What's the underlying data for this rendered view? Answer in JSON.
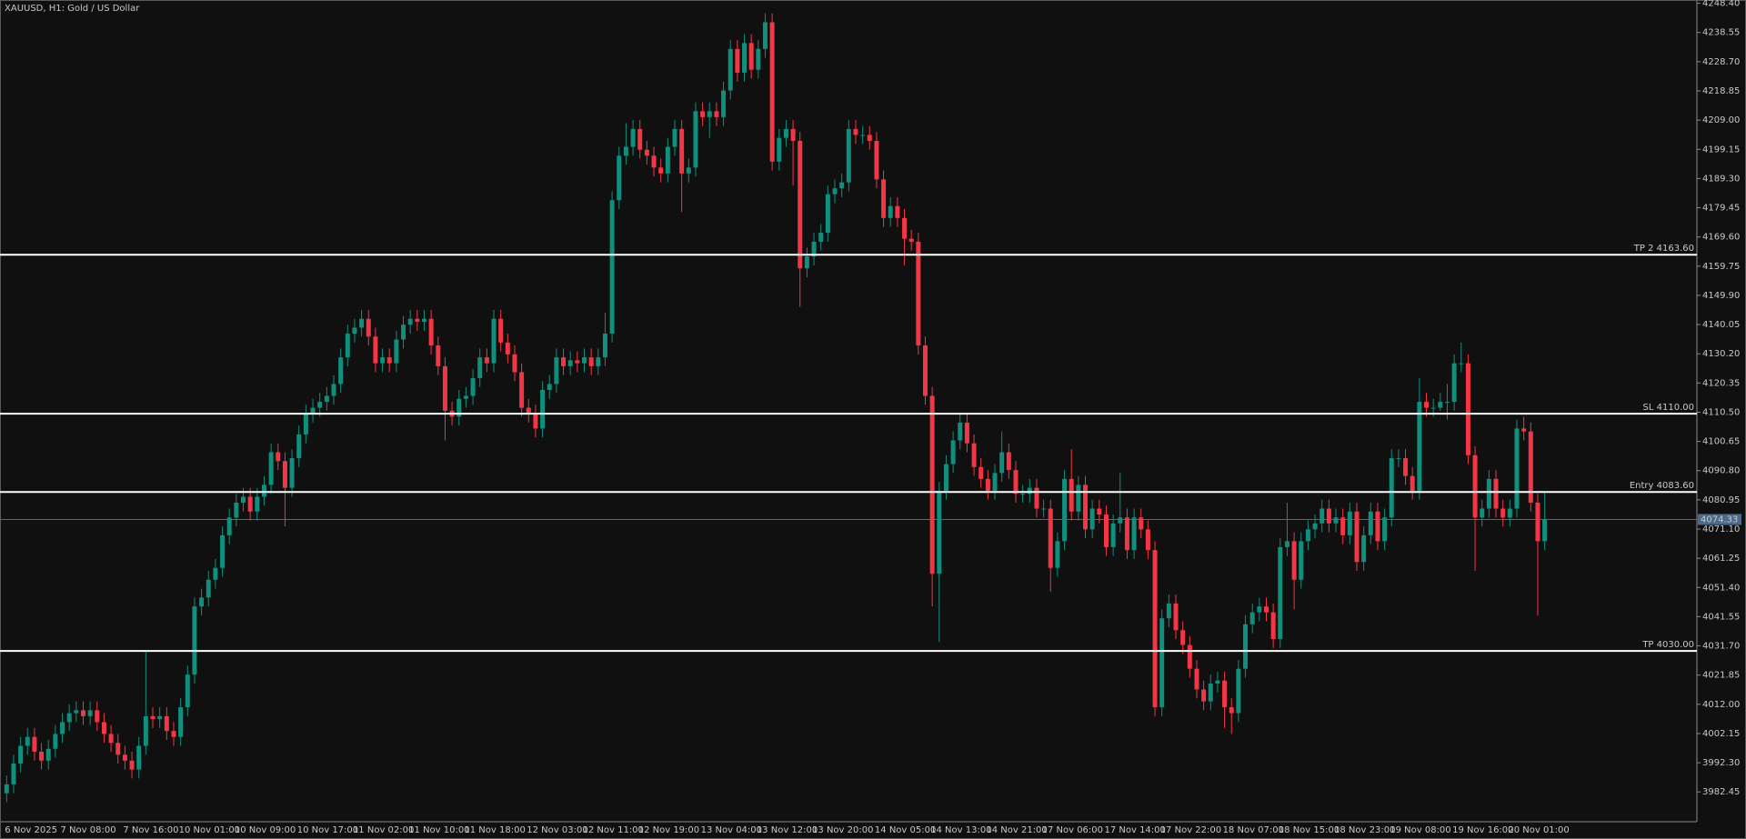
{
  "chart_data": {
    "type": "candlestick",
    "title": "XAUUSD, H1:  Gold / US Dollar",
    "categories": [
      "6 Nov 2025",
      null,
      null,
      null,
      null,
      null,
      null,
      null,
      "7 Nov 08:00",
      null,
      null,
      null,
      null,
      null,
      null,
      null,
      null,
      "7 Nov 16:00",
      null,
      null,
      null,
      null,
      null,
      null,
      null,
      "10 Nov 01:00",
      null,
      null,
      null,
      null,
      null,
      null,
      null,
      "10 Nov 09:00",
      null,
      null,
      null,
      null,
      null,
      null,
      null,
      null,
      "10 Nov 17:00",
      null,
      null,
      null,
      null,
      null,
      null,
      null,
      "11 Nov 02:00",
      null,
      null,
      null,
      null,
      null,
      null,
      null,
      "11 Nov 10:00",
      null,
      null,
      null,
      null,
      null,
      null,
      null,
      "11 Nov 18:00",
      null,
      null,
      null,
      null,
      null,
      null,
      null,
      null,
      "12 Nov 03:00",
      null,
      null,
      null,
      null,
      null,
      null,
      null,
      "12 Nov 11:00",
      null,
      null,
      null,
      null,
      null,
      null,
      null,
      "12 Nov 19:00",
      null,
      null,
      null,
      null,
      null,
      null,
      null,
      null,
      "13 Nov 04:00",
      null,
      null,
      null,
      null,
      null,
      null,
      null,
      "13 Nov 12:00",
      null,
      null,
      null,
      null,
      null,
      null,
      null,
      "13 Nov 20:00",
      null,
      null,
      null,
      null,
      null,
      null,
      null,
      null,
      "14 Nov 05:00",
      null,
      null,
      null,
      null,
      null,
      null,
      null,
      "14 Nov 13:00",
      null,
      null,
      null,
      null,
      null,
      null,
      null,
      "14 Nov 21:00",
      null,
      null,
      null,
      null,
      null,
      null,
      null,
      "17 Nov 06:00",
      null,
      null,
      null,
      null,
      null,
      null,
      null,
      null,
      "17 Nov 14:00",
      null,
      null,
      null,
      null,
      null,
      null,
      null,
      "17 Nov 22:00",
      null,
      null,
      null,
      null,
      null,
      null,
      null,
      null,
      "18 Nov 07:00",
      null,
      null,
      null,
      null,
      null,
      null,
      null,
      "18 Nov 15:00",
      null,
      null,
      null,
      null,
      null,
      null,
      null,
      "18 Nov 23:00",
      null,
      null,
      null,
      null,
      null,
      null,
      null,
      "19 Nov 08:00",
      null,
      null,
      null,
      null,
      null,
      null,
      null,
      null,
      "19 Nov 16:00",
      null,
      null,
      null,
      null,
      null,
      null,
      null,
      "20 Nov 01:00",
      null,
      null,
      null,
      null,
      null
    ],
    "open": [
      3982,
      3985,
      3992,
      3998,
      4001,
      3996,
      3993,
      3997,
      4002,
      4006,
      4009,
      4010,
      4008,
      4010,
      4006,
      4002,
      3999,
      3995,
      3993,
      3990,
      3998,
      4008,
      4007,
      4008,
      4003,
      4001,
      4011,
      4022,
      4045,
      4048,
      4054,
      4058,
      4069,
      4075,
      4080,
      4082,
      4077,
      4082,
      4086,
      4097,
      4094,
      4085,
      4095,
      4103,
      4110,
      4112,
      4114,
      4116,
      4120,
      4129,
      4137,
      4139,
      4142,
      4136,
      4127,
      4129,
      4127,
      4135,
      4140,
      4142,
      4141,
      4142,
      4133,
      4126,
      4111,
      4109,
      4115,
      4116,
      4122,
      4129,
      4127,
      4142,
      4134,
      4130,
      4124,
      4112,
      4110,
      4105,
      4118,
      4120,
      4129,
      4126,
      4128,
      4127,
      4129,
      4126,
      4129,
      4137,
      4182,
      4197,
      4200,
      4206,
      4199,
      4197,
      4193,
      4191,
      4200,
      4206,
      4191,
      4193,
      4212,
      4210,
      4212,
      4210,
      4219,
      4233,
      4225,
      4235,
      4226,
      4233,
      4242,
      4195,
      4203,
      4206,
      4202,
      4159,
      4163,
      4168,
      4171,
      4184,
      4186,
      4188,
      4206,
      4204,
      4204,
      4202,
      4189,
      4176,
      4180,
      4176,
      4169,
      4168,
      4133,
      4116,
      4056,
      4084,
      4093,
      4101,
      4107,
      4100,
      4092,
      4088,
      4084,
      4090,
      4097,
      4091,
      4083,
      4083,
      4085,
      4078,
      4078,
      4058,
      4067,
      4088,
      4077,
      4086,
      4071,
      4078,
      4076,
      4065,
      4073,
      4075,
      4064,
      4075,
      4071,
      4064,
      4011,
      4041,
      4046,
      4037,
      4032,
      4024,
      4017,
      4013,
      4019,
      4020,
      4011,
      4009,
      4024,
      4039,
      4043,
      4045,
      4043,
      4034,
      4065,
      4067,
      4054,
      4067,
      4071,
      4073,
      4078,
      4073,
      4075,
      4069,
      4077,
      4060,
      4069,
      4077,
      4067,
      4075,
      4095,
      4095,
      4089,
      4084,
      4114,
      4112,
      4112,
      4114,
      4114,
      4127,
      4127,
      4096,
      4075,
      4078,
      4088,
      4078,
      4075,
      4078,
      4105,
      4104,
      4080,
      4067
    ],
    "high": [
      3988,
      3995,
      4001,
      4004,
      4004,
      3999,
      4000,
      4005,
      4009,
      4012,
      4013,
      4013,
      4013,
      4013,
      4009,
      4005,
      4002,
      3998,
      3996,
      4001,
      4030,
      4011,
      4011,
      4011,
      4006,
      4014,
      4025,
      4048,
      4051,
      4057,
      4061,
      4072,
      4078,
      4083,
      4085,
      4085,
      4085,
      4089,
      4100,
      4100,
      4097,
      4098,
      4106,
      4113,
      4115,
      4117,
      4119,
      4123,
      4132,
      4140,
      4142,
      4145,
      4145,
      4139,
      4132,
      4132,
      4138,
      4143,
      4145,
      4145,
      4145,
      4145,
      4136,
      4129,
      4114,
      4118,
      4119,
      4125,
      4132,
      4132,
      4145,
      4145,
      4137,
      4133,
      4127,
      4115,
      4113,
      4121,
      4123,
      4132,
      4132,
      4131,
      4131,
      4132,
      4132,
      4132,
      4144,
      4185,
      4200,
      4208,
      4209,
      4209,
      4202,
      4200,
      4196,
      4203,
      4209,
      4209,
      4196,
      4215,
      4215,
      4215,
      4215,
      4222,
      4236,
      4236,
      4238,
      4238,
      4236,
      4245,
      4245,
      4206,
      4209,
      4209,
      4205,
      4166,
      4171,
      4174,
      4187,
      4189,
      4191,
      4209,
      4209,
      4207,
      4207,
      4205,
      4192,
      4183,
      4183,
      4179,
      4172,
      4171,
      4136,
      4119,
      4087,
      4096,
      4104,
      4110,
      4110,
      4103,
      4095,
      4091,
      4093,
      4104,
      4100,
      4094,
      4086,
      4088,
      4088,
      4081,
      4081,
      4070,
      4091,
      4098,
      4089,
      4089,
      4081,
      4081,
      4079,
      4076,
      4090,
      4078,
      4078,
      4078,
      4074,
      4067,
      4044,
      4049,
      4049,
      4040,
      4035,
      4027,
      4020,
      4022,
      4023,
      4023,
      4014,
      4027,
      4042,
      4046,
      4048,
      4048,
      4046,
      4068,
      4080,
      4070,
      4070,
      4074,
      4076,
      4081,
      4081,
      4078,
      4078,
      4080,
      4080,
      4072,
      4080,
      4080,
      4078,
      4098,
      4098,
      4098,
      4092,
      4122,
      4117,
      4115,
      4117,
      4120,
      4130,
      4134,
      4130,
      4099,
      4081,
      4091,
      4091,
      4081,
      4081,
      4108,
      4109,
      4107,
      4083,
      4084
    ],
    "low": [
      3979,
      3982,
      3989,
      3995,
      3993,
      3990,
      3990,
      3994,
      3999,
      4003,
      4006,
      4005,
      4005,
      4003,
      3999,
      3996,
      3992,
      3990,
      3987,
      3987,
      3995,
      4004,
      4004,
      4000,
      3998,
      3998,
      4008,
      4019,
      4042,
      4045,
      4051,
      4055,
      4066,
      4072,
      4077,
      4074,
      4074,
      4079,
      4083,
      4091,
      4072,
      4082,
      4092,
      4100,
      4107,
      4109,
      4111,
      4113,
      4117,
      4126,
      4134,
      4136,
      4133,
      4124,
      4124,
      4124,
      4124,
      4132,
      4137,
      4138,
      4138,
      4130,
      4123,
      4101,
      4106,
      4106,
      4112,
      4113,
      4119,
      4124,
      4124,
      4131,
      4127,
      4121,
      4109,
      4107,
      4102,
      4102,
      4115,
      4117,
      4123,
      4123,
      4124,
      4124,
      4123,
      4123,
      4126,
      4134,
      4179,
      4194,
      4197,
      4196,
      4194,
      4190,
      4188,
      4188,
      4197,
      4178,
      4188,
      4190,
      4207,
      4203,
      4207,
      4207,
      4216,
      4222,
      4222,
      4223,
      4223,
      4230,
      4192,
      4192,
      4200,
      4187,
      4146,
      4156,
      4160,
      4165,
      4168,
      4181,
      4183,
      4185,
      4201,
      4201,
      4199,
      4186,
      4173,
      4173,
      4173,
      4160,
      4165,
      4130,
      4113,
      4045,
      4033,
      4081,
      4090,
      4098,
      4097,
      4089,
      4085,
      4081,
      4081,
      4087,
      4088,
      4080,
      4080,
      4080,
      4075,
      4075,
      4050,
      4055,
      4064,
      4074,
      4074,
      4068,
      4068,
      4073,
      4062,
      4062,
      4070,
      4061,
      4061,
      4068,
      4061,
      4008,
      4008,
      4038,
      4034,
      4029,
      4021,
      4014,
      4010,
      4010,
      4016,
      4004,
      4002,
      4006,
      4021,
      4036,
      4040,
      4040,
      4031,
      4031,
      4062,
      4044,
      4051,
      4064,
      4068,
      4070,
      4070,
      4070,
      4066,
      4066,
      4057,
      4057,
      4066,
      4064,
      4064,
      4072,
      4092,
      4086,
      4081,
      4081,
      4109,
      4109,
      4111,
      4108,
      4111,
      4124,
      4093,
      4057,
      4072,
      4075,
      4075,
      4072,
      4072,
      4075,
      4101,
      4077,
      4042,
      4064
    ],
    "close": [
      3985,
      3992,
      3998,
      4001,
      3996,
      3993,
      3997,
      4002,
      4006,
      4009,
      4010,
      4008,
      4010,
      4006,
      4002,
      3999,
      3995,
      3993,
      3990,
      3998,
      4008,
      4007,
      4008,
      4003,
      4001,
      4011,
      4022,
      4045,
      4048,
      4054,
      4058,
      4069,
      4075,
      4080,
      4082,
      4077,
      4082,
      4086,
      4097,
      4094,
      4085,
      4095,
      4103,
      4110,
      4112,
      4114,
      4116,
      4120,
      4129,
      4137,
      4139,
      4142,
      4136,
      4127,
      4129,
      4127,
      4135,
      4140,
      4142,
      4141,
      4142,
      4133,
      4126,
      4111,
      4109,
      4115,
      4116,
      4122,
      4129,
      4127,
      4142,
      4134,
      4130,
      4124,
      4112,
      4110,
      4105,
      4118,
      4120,
      4129,
      4126,
      4128,
      4127,
      4129,
      4126,
      4129,
      4137,
      4182,
      4197,
      4200,
      4206,
      4199,
      4197,
      4193,
      4191,
      4200,
      4206,
      4191,
      4193,
      4212,
      4210,
      4212,
      4210,
      4219,
      4233,
      4225,
      4235,
      4226,
      4233,
      4242,
      4195,
      4203,
      4206,
      4202,
      4159,
      4163,
      4168,
      4171,
      4184,
      4186,
      4188,
      4206,
      4204,
      4204,
      4202,
      4189,
      4176,
      4180,
      4176,
      4169,
      4168,
      4133,
      4116,
      4056,
      4084,
      4093,
      4101,
      4107,
      4100,
      4092,
      4088,
      4084,
      4090,
      4097,
      4091,
      4083,
      4083,
      4085,
      4078,
      4078,
      4058,
      4067,
      4088,
      4077,
      4086,
      4071,
      4078,
      4076,
      4065,
      4073,
      4075,
      4064,
      4075,
      4071,
      4064,
      4011,
      4041,
      4046,
      4037,
      4032,
      4024,
      4017,
      4013,
      4019,
      4020,
      4011,
      4009,
      4024,
      4039,
      4043,
      4045,
      4043,
      4034,
      4065,
      4067,
      4054,
      4067,
      4071,
      4073,
      4078,
      4073,
      4075,
      4069,
      4077,
      4060,
      4069,
      4077,
      4067,
      4075,
      4095,
      4095,
      4089,
      4084,
      4114,
      4112,
      4112,
      4114,
      4114,
      4127,
      4127,
      4096,
      4075,
      4078,
      4088,
      4078,
      4075,
      4078,
      4105,
      4104,
      4080,
      4067,
      4074.33
    ],
    "up_color": "#0f8f7c",
    "down_color": "#f23645",
    "ylim": [
      3972.4,
      4249.5
    ],
    "yticks": [
      {
        "value": 4248.4,
        "label": "4248.40"
      },
      {
        "value": 4238.55,
        "label": "4238.55"
      },
      {
        "value": 4228.7,
        "label": "4228.70"
      },
      {
        "value": 4218.85,
        "label": "4218.85"
      },
      {
        "value": 4209,
        "label": "4209.00"
      },
      {
        "value": 4199.15,
        "label": "4199.15"
      },
      {
        "value": 4189.3,
        "label": "4189.30"
      },
      {
        "value": 4179.45,
        "label": "4179.45"
      },
      {
        "value": 4169.6,
        "label": "4169.60"
      },
      {
        "value": 4159.75,
        "label": "4159.75"
      },
      {
        "value": 4149.9,
        "label": "4149.90"
      },
      {
        "value": 4140.05,
        "label": "4140.05"
      },
      {
        "value": 4130.2,
        "label": "4130.20"
      },
      {
        "value": 4120.35,
        "label": "4120.35"
      },
      {
        "value": 4110.5,
        "label": "4110.50"
      },
      {
        "value": 4100.65,
        "label": "4100.65"
      },
      {
        "value": 4090.8,
        "label": "4090.80"
      },
      {
        "value": 4080.95,
        "label": "4080.95"
      },
      {
        "value": 4071.1,
        "label": "4071.10"
      },
      {
        "value": 4061.25,
        "label": "4061.25"
      },
      {
        "value": 4051.4,
        "label": "4051.40"
      },
      {
        "value": 4041.55,
        "label": "4041.55"
      },
      {
        "value": 4031.7,
        "label": "4031.70"
      },
      {
        "value": 4021.85,
        "label": "4021.85"
      },
      {
        "value": 4012,
        "label": "4012.00"
      },
      {
        "value": 4002.15,
        "label": "4002.15"
      },
      {
        "value": 3992.3,
        "label": "3992.30"
      },
      {
        "value": 3982.45,
        "label": "3982.45"
      }
    ],
    "levels": [
      {
        "label": "TP 2 4163.60",
        "value": 4163.6
      },
      {
        "label": "SL 4110.00",
        "value": 4110
      },
      {
        "label": "Entry 4083.60",
        "value": 4083.6
      },
      {
        "label": "TP 4030.00",
        "value": 4030
      }
    ],
    "bid": {
      "value": 4074.33,
      "label": "4074.33"
    },
    "grid": false
  }
}
